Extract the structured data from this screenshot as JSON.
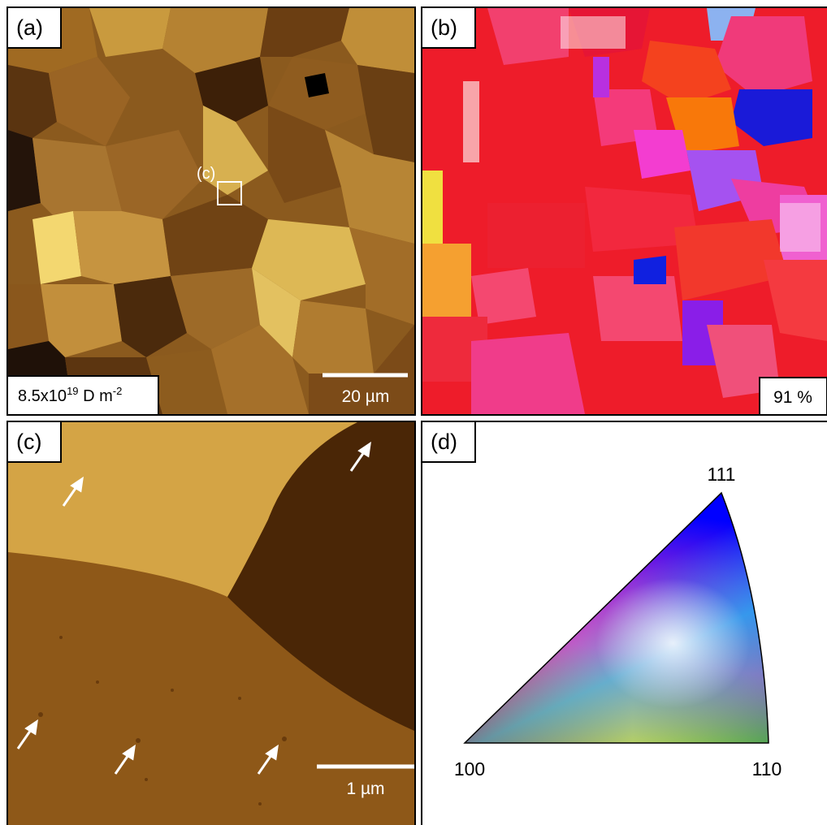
{
  "panels": [
    {
      "label": "(a)",
      "inset_label": "(c)",
      "annotation": {
        "base": "8.5x10",
        "exp": "19",
        "unit": " D m",
        "unit_exp": "-2"
      },
      "scale_bar": "20 µm"
    },
    {
      "label": "(b)",
      "annotation": "91 %"
    },
    {
      "label": "(c)",
      "scale_bar": "1 µm"
    },
    {
      "label": "(d)",
      "corners": [
        "111",
        "100",
        "110"
      ]
    }
  ]
}
